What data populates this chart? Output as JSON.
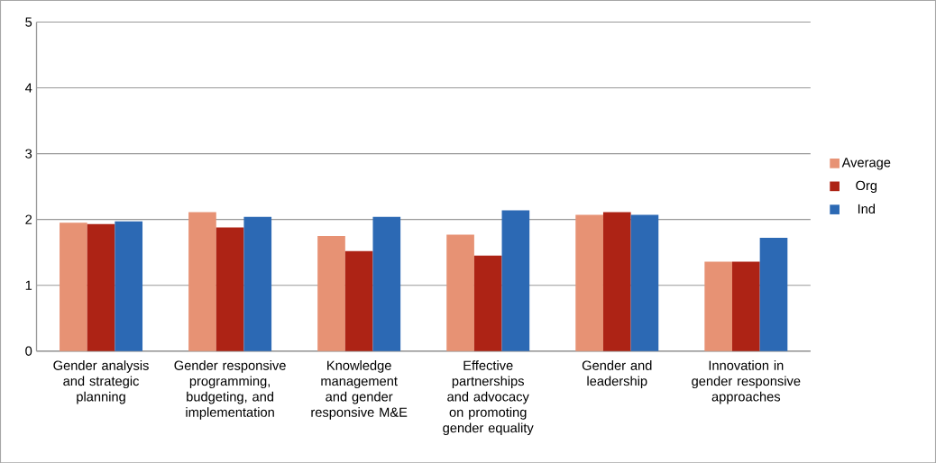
{
  "chart_data": {
    "type": "bar",
    "categories": [
      "Gender analysis and strategic planning",
      "Gender responsive programming, budgeting, and implementation",
      "Knowledge management and gender responsive M&E",
      "Effective partnerships and advocacy on promoting gender equality",
      "Gender and leadership",
      "Innovation in gender responsive approaches"
    ],
    "series": [
      {
        "name": "Average",
        "color": "#e79274",
        "values": [
          1.95,
          2.11,
          1.75,
          1.77,
          2.07,
          1.36
        ]
      },
      {
        "name": "Org",
        "color": "#ad2315",
        "values": [
          1.93,
          1.88,
          1.52,
          1.45,
          2.11,
          1.36
        ]
      },
      {
        "name": "Ind",
        "color": "#2c69b4",
        "values": [
          1.97,
          2.04,
          2.04,
          2.14,
          2.07,
          1.72
        ]
      }
    ],
    "ylim": [
      0,
      5
    ],
    "yticks": [
      0,
      1,
      2,
      3,
      4,
      5
    ],
    "grid": "y",
    "legend": "right"
  }
}
